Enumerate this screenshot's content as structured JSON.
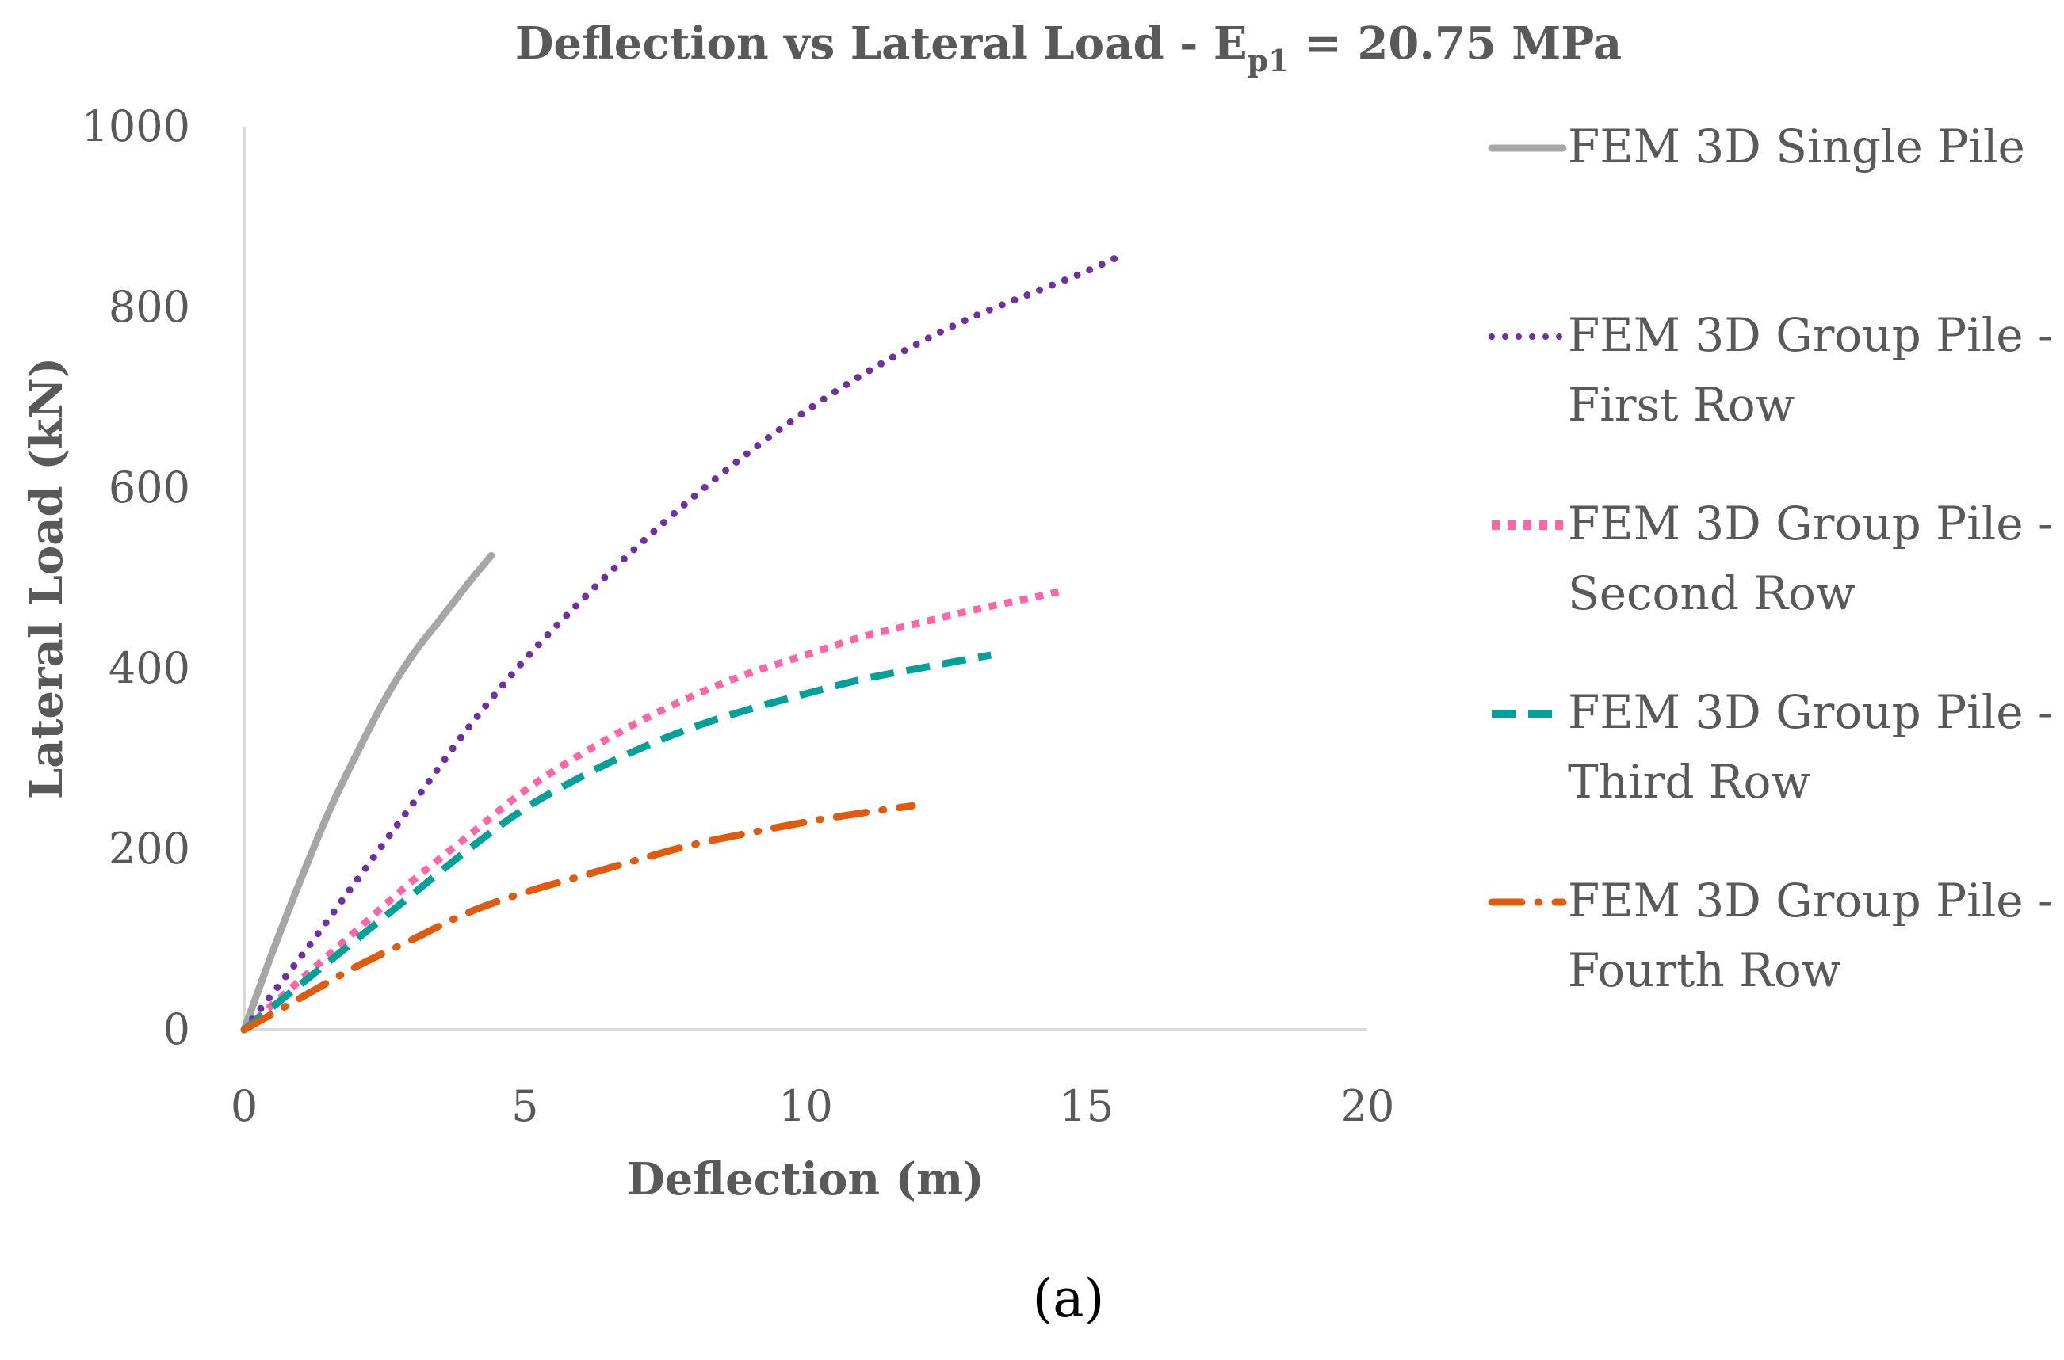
{
  "chart_data": {
    "type": "line",
    "title": "Deflection vs Lateral Load - E",
    "title_subscript": "p1",
    "title_suffix": " = 20.75 MPa",
    "xlabel": "Deflection (m)",
    "ylabel": "Lateral Load (kN)",
    "xlim": [
      0,
      20
    ],
    "ylim": [
      0,
      1000
    ],
    "x_ticks": [
      0,
      5,
      10,
      15,
      20
    ],
    "y_ticks": [
      0,
      200,
      400,
      600,
      800,
      1000
    ],
    "legend_position": "right",
    "caption": "(a)",
    "series": [
      {
        "name": "FEM 3D Single Pile",
        "legend_lines": [
          "FEM 3D Single Pile"
        ],
        "color": "#a6a6a6",
        "dash": "none",
        "x": [
          0,
          0.5,
          1.0,
          1.5,
          2.0,
          2.5,
          3.0,
          3.5,
          4.0,
          4.4
        ],
        "y": [
          0,
          85,
          165,
          240,
          305,
          365,
          415,
          455,
          495,
          525
        ]
      },
      {
        "name": "FEM 3D Group Pile - First Row",
        "legend_lines": [
          "FEM 3D Group Pile -",
          "First Row"
        ],
        "color": "#7030a0",
        "dash": "dot",
        "x": [
          0,
          1,
          2,
          3,
          4,
          5,
          6,
          7,
          8,
          9,
          10,
          11,
          12,
          13,
          14,
          15,
          15.7
        ],
        "y": [
          0,
          80,
          165,
          250,
          335,
          410,
          475,
          535,
          590,
          640,
          685,
          725,
          760,
          790,
          815,
          840,
          860
        ]
      },
      {
        "name": "FEM 3D Group Pile - Second Row",
        "legend_lines": [
          "FEM 3D Group Pile -",
          "Second Row"
        ],
        "color": "#ff66a6",
        "dash": "dot-bold",
        "x": [
          0,
          1,
          2,
          3,
          4,
          5,
          6,
          7,
          8,
          9,
          10,
          11,
          12,
          13,
          14,
          14.5
        ],
        "y": [
          0,
          55,
          110,
          165,
          215,
          265,
          305,
          340,
          370,
          395,
          415,
          435,
          450,
          465,
          478,
          485
        ]
      },
      {
        "name": "FEM 3D Group Pile - Third Row",
        "legend_lines": [
          "FEM 3D Group Pile -",
          "Third Row"
        ],
        "color": "#00a09a",
        "dash": "dash",
        "x": [
          0,
          1,
          2,
          3,
          4,
          5,
          6,
          7,
          8,
          9,
          10,
          11,
          12,
          13.3
        ],
        "y": [
          0,
          50,
          100,
          150,
          200,
          245,
          280,
          310,
          335,
          355,
          372,
          388,
          400,
          415
        ]
      },
      {
        "name": "FEM 3D Group Pile - Fourth Row",
        "legend_lines": [
          "FEM 3D Group Pile -",
          "Fourth Row"
        ],
        "color": "#e05a10",
        "dash": "dashdot",
        "x": [
          0,
          1,
          2,
          3,
          4,
          5,
          6,
          7,
          8,
          9,
          10,
          11,
          11.9
        ],
        "y": [
          0,
          35,
          70,
          100,
          130,
          152,
          170,
          188,
          205,
          218,
          230,
          240,
          248
        ]
      }
    ]
  }
}
